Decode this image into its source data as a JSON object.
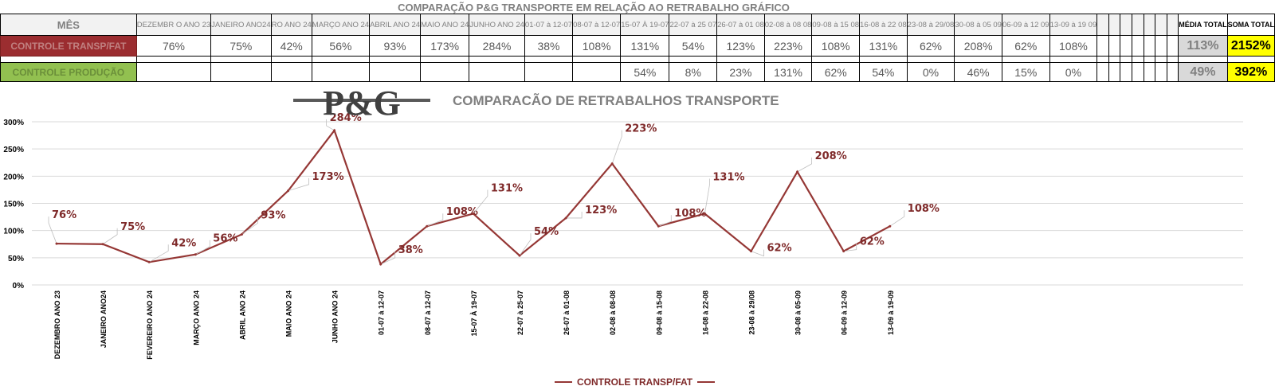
{
  "sheet_title": "COMPARAÇÃO P&G  TRANSPORTE EM RELAÇÃO AO RETRABALHO GRÁFICO",
  "table": {
    "mes_label": "MÊS",
    "periods": [
      "DEZEMBR O ANO 23",
      "JANEIRO ANO24",
      "RO ANO 24",
      "MARÇO ANO 24",
      "ABRIL ANO 24",
      "MAIO ANO 24",
      "JUNHO ANO 24",
      "01-07 à 12-07",
      "08-07 à 12-07",
      "15-07 À 19-07",
      "22-07 à 25 07",
      "26-07 à 01 08",
      "02-08 à 08 08",
      "09-08 à 15 08",
      "16-08 à 22 08",
      "23-08 à 29/08",
      "30-08 à 05 09",
      "06-09 à 12 09",
      "13-09 à 19 09"
    ],
    "empty_cols": 7,
    "media_total_label": "MÉDIA TOTAL",
    "soma_total_label": "SOMA TOTAL",
    "rows": [
      {
        "label": "CONTROLE TRANSP/FAT",
        "values": [
          "76%",
          "75%",
          "42%",
          "56%",
          "93%",
          "173%",
          "284%",
          "38%",
          "108%",
          "131%",
          "54%",
          "123%",
          "223%",
          "108%",
          "131%",
          "62%",
          "208%",
          "62%",
          "108%"
        ],
        "media": "113%",
        "soma": "2152%"
      },
      {
        "label": "CONTROLE PRODUÇÃO",
        "values": [
          "",
          "",
          "",
          "",
          "",
          "",
          "",
          "",
          "",
          "54%",
          "8%",
          "23%",
          "131%",
          "62%",
          "54%",
          "0%",
          "46%",
          "15%",
          "0%"
        ],
        "media": "49%",
        "soma": "392%"
      }
    ]
  },
  "logo_text": "P&G",
  "chart_data": {
    "type": "line",
    "title": "COMPARACÃO DE RETRABALHOS TRANSPORTE",
    "categories": [
      "DEZEMBRO ANO 23",
      "JANEIRO ANO24",
      "FEVEREIRO ANO 24",
      "MARÇO ANO 24",
      "ABRIL    ANO 24",
      "MAIO    ANO 24",
      "JUNHO    ANO 24",
      "01-07 à 12-07",
      "08-07 à 12-07",
      "15-07 À 19-07",
      "22-07 à 25-07",
      "26-07 à 01-08",
      "02-08 à 08-08",
      "09-08 à 15-08",
      "16-08 à 22-08",
      "23-08 à 29/08",
      "30-08 à 05-09",
      "06-09 à 12-09",
      "13-09 à 19-09"
    ],
    "series": [
      {
        "name": "CONTROLE TRANSP/FAT",
        "values": [
          76,
          75,
          42,
          56,
          93,
          173,
          284,
          38,
          108,
          131,
          54,
          123,
          223,
          108,
          131,
          62,
          208,
          62,
          108
        ],
        "data_labels": [
          "76%",
          "75%",
          "42%",
          "56%",
          "93%",
          "173%",
          "284%",
          "38%",
          "108%",
          "131%",
          "54%",
          "123%",
          "223%",
          "108%",
          "131%",
          "62%",
          "208%",
          "62%",
          "108%"
        ]
      }
    ],
    "y_ticks": [
      "0%",
      "50%",
      "100%",
      "150%",
      "200%",
      "250%",
      "300%"
    ],
    "ylim": [
      0,
      300
    ],
    "grid": true,
    "legend": "bottom",
    "colors": {
      "line": "#953735",
      "label": "#7f2a2a",
      "grid": "#d9d9d9"
    }
  }
}
